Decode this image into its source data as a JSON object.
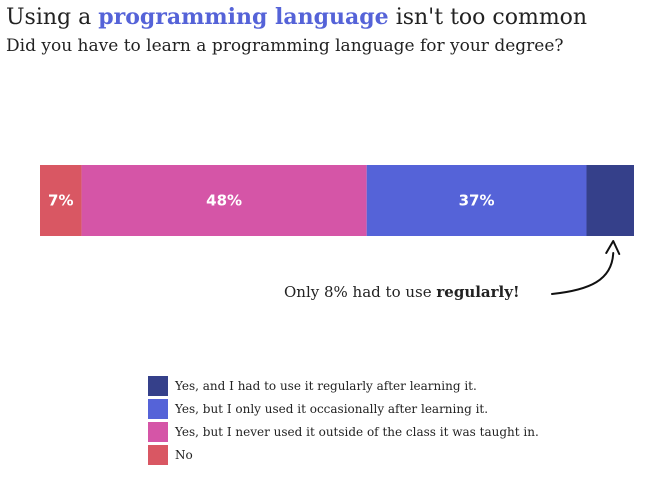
{
  "title": {
    "before": "Using a",
    "highlight": "programming language",
    "after": "isn't too common"
  },
  "subtitle": "Did you have to learn a programming language for your degree?",
  "annotation": {
    "before": "Only 8% had to use",
    "bold": "regularly!"
  },
  "colors": {
    "highlight": "#5563d8"
  },
  "chart_data": {
    "type": "bar",
    "orientation": "horizontal",
    "stacked": true,
    "percent": true,
    "series": [
      {
        "name": "No",
        "value": 7,
        "label": "7%",
        "color": "#d95763"
      },
      {
        "name": "Yes, but I never used it outside of the class it was taught in.",
        "value": 48,
        "label": "48%",
        "color": "#d555a7"
      },
      {
        "name": "Yes, but I only used it occasionally after learning it.",
        "value": 37,
        "label": "37%",
        "color": "#5563d8"
      },
      {
        "name": "Yes, and I had to use it regularly after learning it.",
        "value": 8,
        "label": "",
        "color": "#35408a"
      }
    ],
    "legend": [
      {
        "label": "Yes, and I had to use it regularly after learning it.",
        "color": "#35408a"
      },
      {
        "label": "Yes, but I only used it occasionally after learning it.",
        "color": "#5563d8"
      },
      {
        "label": "Yes, but I never used it outside of the class it was taught in.",
        "color": "#d555a7"
      },
      {
        "label": "No",
        "color": "#d95763"
      }
    ],
    "legend_position": "bottom-center",
    "xlim": [
      0,
      100
    ]
  }
}
